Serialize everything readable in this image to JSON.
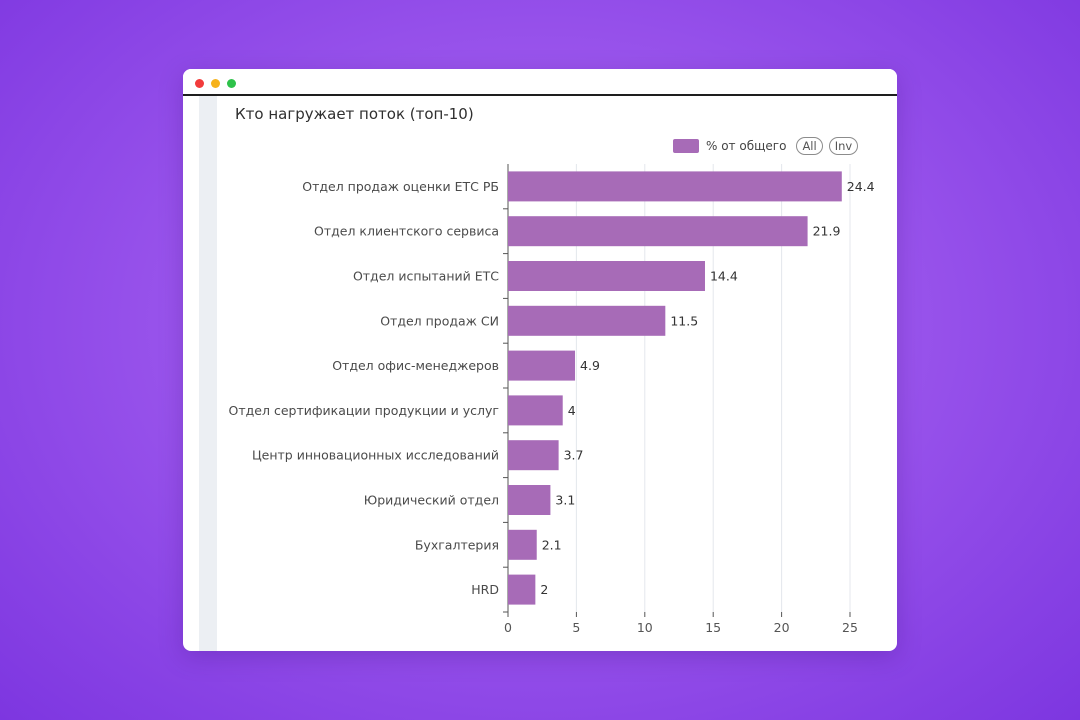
{
  "window": {
    "buttons": [
      "close",
      "minimize",
      "maximize"
    ]
  },
  "chart_data": {
    "type": "bar",
    "orientation": "horizontal",
    "title": "Кто нагружает поток (топ-10)",
    "categories": [
      "Отдел продаж оценки ЕТС РБ",
      "Отдел клиентского сервиса",
      "Отдел испытаний ЕТС",
      "Отдел продаж СИ",
      "Отдел офис-менеджеров",
      "Отдел сертификации продукции и услуг",
      "Центр инновационных исследований",
      "Юридический отдел",
      "Бухгалтерия",
      "HRD"
    ],
    "values": [
      24.4,
      21.9,
      14.4,
      11.5,
      4.9,
      4,
      3.7,
      3.1,
      2.1,
      2
    ],
    "value_labels": [
      "24.4",
      "21.9",
      "14.4",
      "11.5",
      "4.9",
      "4",
      "3.7",
      "3.1",
      "2.1",
      "2"
    ],
    "series_name": "% от общего",
    "xlim": [
      0,
      25
    ],
    "xticks": [
      0,
      5,
      10,
      15,
      20,
      25
    ],
    "xtick_labels": [
      "0",
      "5",
      "10",
      "15",
      "20",
      "25"
    ],
    "grid": true,
    "bar_color": "#a76bb7",
    "legend": {
      "position": "top-right",
      "label": "% от общего",
      "buttons": [
        "All",
        "Inv"
      ]
    }
  }
}
